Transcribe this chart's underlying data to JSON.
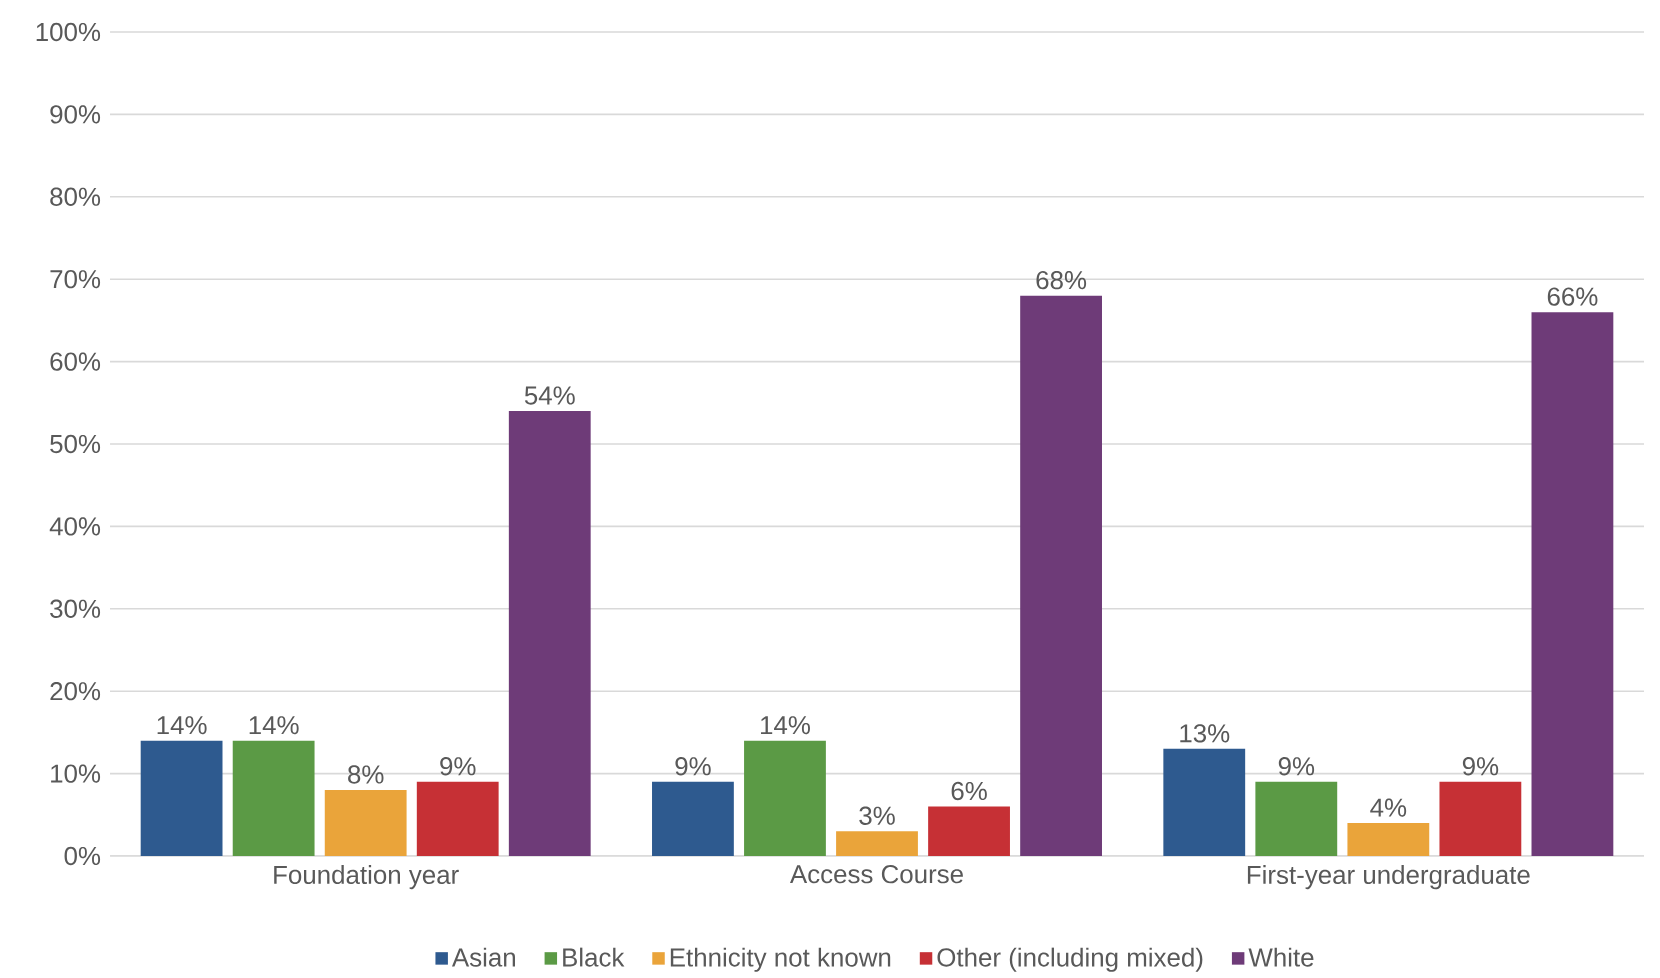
{
  "chart_data": {
    "type": "bar",
    "categories": [
      "Foundation year",
      "Access Course",
      "First-year undergraduate"
    ],
    "series": [
      {
        "name": "Asian",
        "color": "#2e5a8f",
        "values": [
          14,
          9,
          13
        ]
      },
      {
        "name": "Black",
        "color": "#5b9a45",
        "values": [
          14,
          14,
          9
        ]
      },
      {
        "name": "Ethnicity not known",
        "color": "#eaa43a",
        "values": [
          8,
          3,
          4
        ]
      },
      {
        "name": "Other (including mixed)",
        "color": "#c63035",
        "values": [
          9,
          6,
          9
        ]
      },
      {
        "name": "White",
        "color": "#6e3b78",
        "values": [
          54,
          68,
          66
        ]
      }
    ],
    "ylim": [
      0,
      100
    ],
    "yticks": [
      {
        "value": 0,
        "label": "0%"
      },
      {
        "value": 10,
        "label": "10%"
      },
      {
        "value": 20,
        "label": "20%"
      },
      {
        "value": 30,
        "label": "30%"
      },
      {
        "value": 40,
        "label": "40%"
      },
      {
        "value": 50,
        "label": "50%"
      },
      {
        "value": 60,
        "label": "60%"
      },
      {
        "value": 70,
        "label": "70%"
      },
      {
        "value": 80,
        "label": "80%"
      },
      {
        "value": 90,
        "label": "90%"
      },
      {
        "value": 100,
        "label": "100%"
      }
    ],
    "value_labels": [
      [
        "14%",
        "9%",
        "13%"
      ],
      [
        "14%",
        "14%",
        "9%"
      ],
      [
        "8%",
        "3%",
        "4%"
      ],
      [
        "9%",
        "6%",
        "9%"
      ],
      [
        "54%",
        "68%",
        "66%"
      ]
    ],
    "grid": "y",
    "legend": "bottom"
  }
}
